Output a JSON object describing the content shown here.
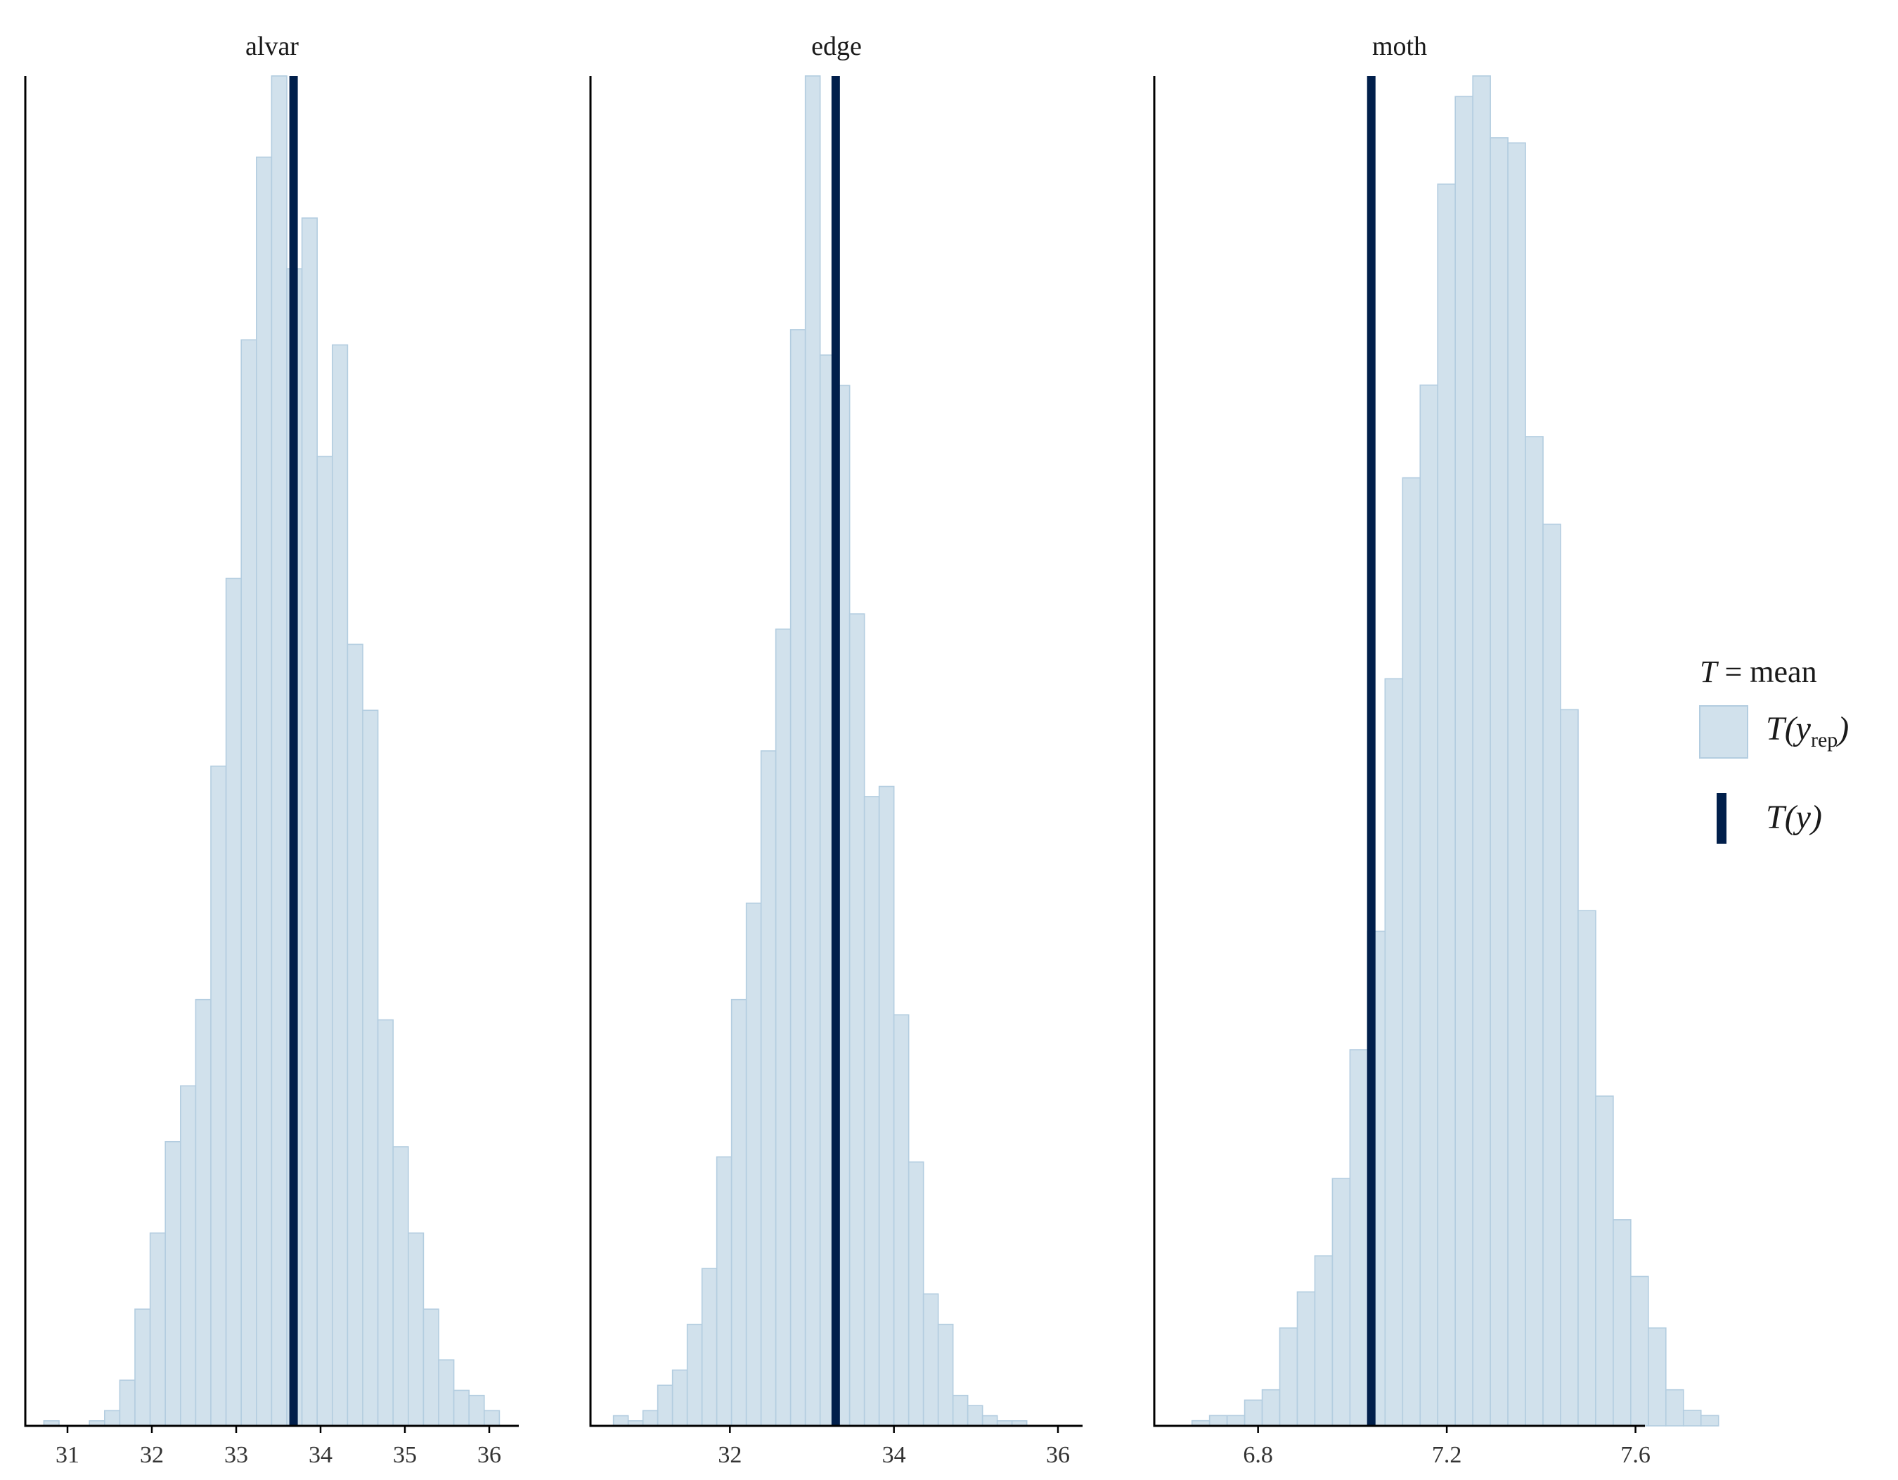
{
  "chart_data": [
    {
      "type": "bar",
      "title": "alvar",
      "xlim": [
        30.5,
        36.35
      ],
      "xticks": [
        31,
        32,
        33,
        34,
        35,
        36
      ],
      "tick_labels": [
        "31",
        "32",
        "33",
        "34",
        "35",
        "36"
      ],
      "bin_start": 30.72,
      "bin_width": 0.18,
      "counts": [
        1,
        0,
        0,
        1,
        3,
        9,
        23,
        38,
        56,
        67,
        84,
        130,
        167,
        214,
        250,
        266,
        228,
        238,
        191,
        213,
        154,
        141,
        80,
        55,
        38,
        23,
        13,
        7,
        6,
        3
      ],
      "ymax": 266,
      "observed": 33.68,
      "observed_label": "T(y)"
    },
    {
      "type": "bar",
      "title": "edge",
      "xlim": [
        30.3,
        36.3
      ],
      "xticks": [
        32,
        34,
        36
      ],
      "tick_labels": [
        "32",
        "34",
        "36"
      ],
      "bin_start": 30.58,
      "bin_width": 0.18,
      "counts": [
        2,
        1,
        3,
        8,
        11,
        20,
        31,
        53,
        84,
        103,
        133,
        157,
        216,
        266,
        211,
        205,
        160,
        124,
        126,
        81,
        52,
        26,
        20,
        6,
        4,
        2,
        1,
        1
      ],
      "ymax": 266,
      "observed": 33.29,
      "observed_label": "T(y)"
    },
    {
      "type": "bar",
      "title": "moth",
      "xlim": [
        6.58,
        7.62
      ],
      "xticks": [
        6.8,
        7.2,
        7.6
      ],
      "tick_labels": [
        "6.8",
        "7.2",
        "7.6"
      ],
      "bin_start": 6.66,
      "bin_width": 0.0372,
      "counts": [
        1,
        2,
        2,
        5,
        7,
        19,
        26,
        33,
        48,
        73,
        96,
        145,
        184,
        202,
        241,
        258,
        262,
        250,
        249,
        192,
        175,
        139,
        100,
        64,
        40,
        29,
        19,
        7,
        3,
        2,
        0
      ],
      "ymax": 262,
      "observed": 7.04,
      "observed_label": "T(y)"
    }
  ],
  "legend": {
    "title_italic": "T",
    "title_rest": " = mean",
    "rep_main": "T(y",
    "rep_sub": "rep",
    "rep_close": ")",
    "obs_label": "T(y)"
  },
  "colors": {
    "rep_fill": "#d1e1ec",
    "rep_stroke": "#b3cde0",
    "observed": "#011f4b",
    "axis": "#000000",
    "tick_label": "#333333"
  }
}
